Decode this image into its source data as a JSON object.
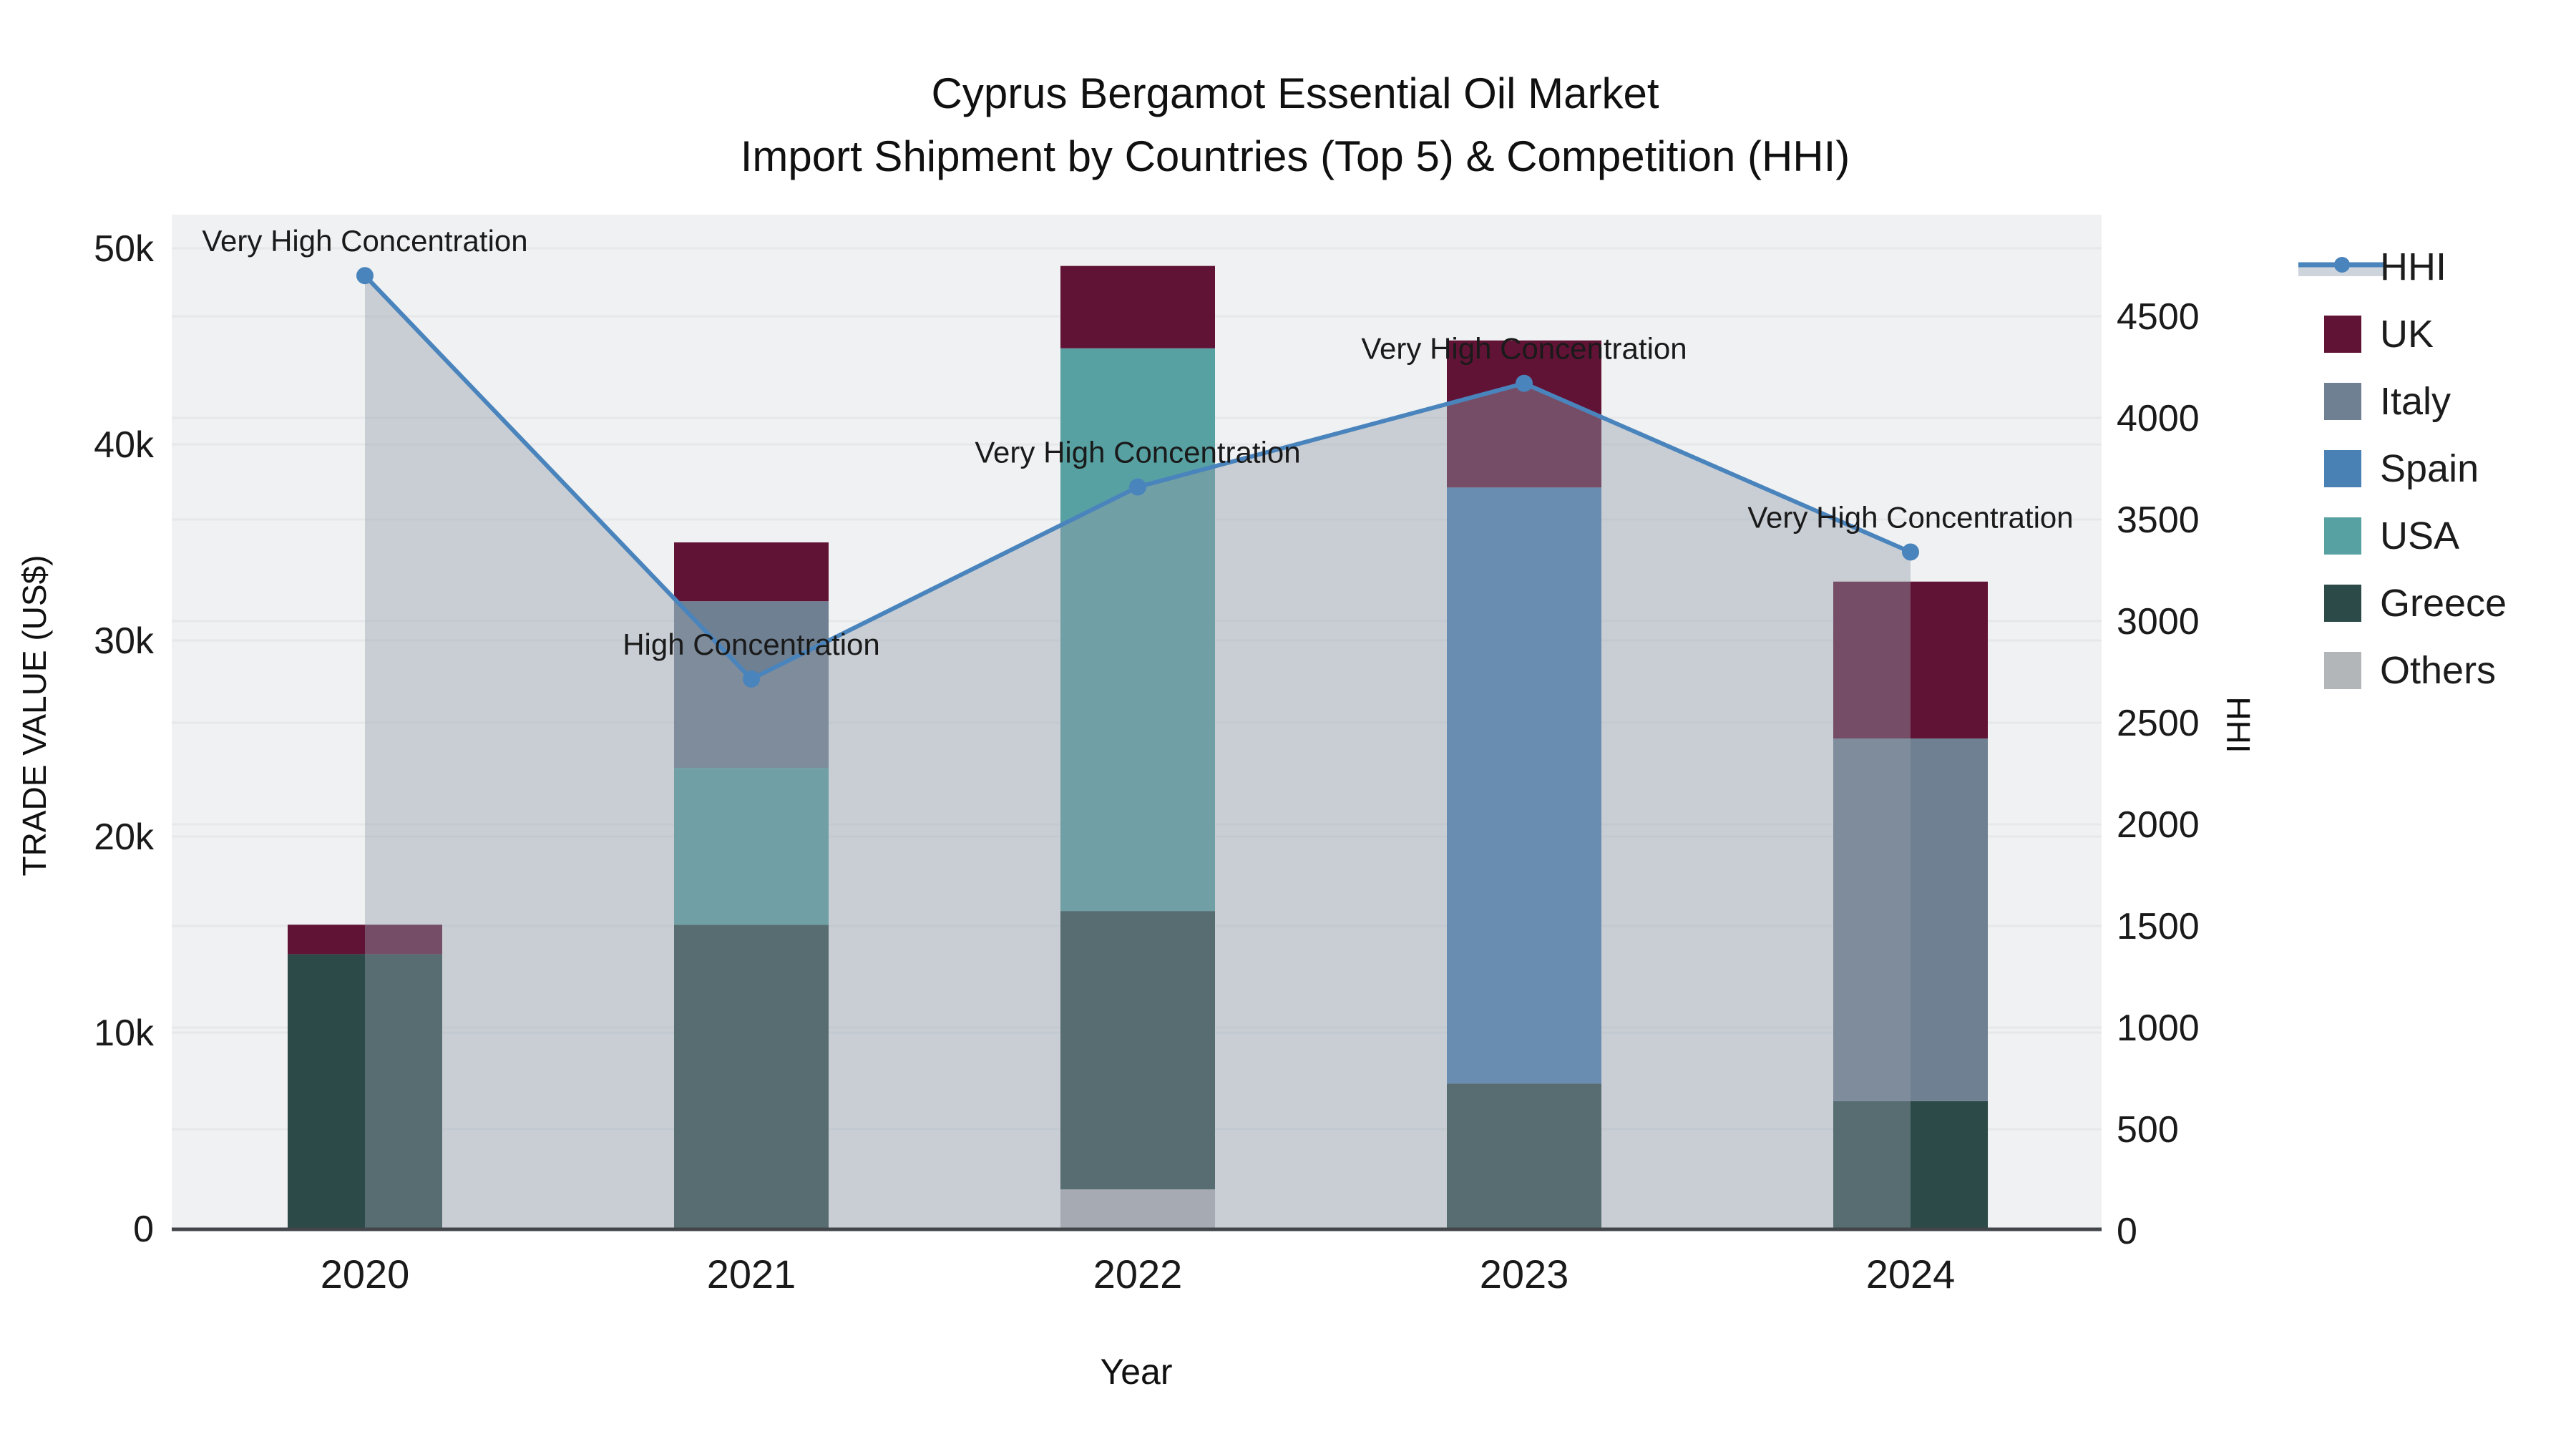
{
  "title": {
    "line1": "Cyprus Bergamot Essential Oil Market",
    "line2": "Import Shipment by Countries (Top 5) & Competition (HHI)"
  },
  "axes": {
    "x": {
      "title": "Year",
      "categories": [
        "2020",
        "2021",
        "2022",
        "2023",
        "2024"
      ]
    },
    "y_left": {
      "title": "TRADE VALUE (US$)",
      "tick_labels": [
        "0",
        "10k",
        "20k",
        "30k",
        "40k",
        "50k"
      ],
      "tick_values": [
        0,
        10000,
        20000,
        30000,
        40000,
        50000
      ],
      "range": [
        0,
        50000
      ]
    },
    "y_right": {
      "title": "HHI",
      "tick_labels": [
        "0",
        "500",
        "1000",
        "1500",
        "2000",
        "2500",
        "3000",
        "3500",
        "4000",
        "4500"
      ],
      "tick_values": [
        0,
        500,
        1000,
        1500,
        2000,
        2500,
        3000,
        3500,
        4000,
        4500
      ],
      "range": [
        0,
        4500
      ]
    }
  },
  "legend": [
    {
      "label": "HHI",
      "type": "line",
      "color": "#4a84bd"
    },
    {
      "label": "UK",
      "type": "swatch",
      "color": "#611336"
    },
    {
      "label": "Italy",
      "type": "swatch",
      "color": "#6f8092"
    },
    {
      "label": "Spain",
      "type": "swatch",
      "color": "#4a81b5"
    },
    {
      "label": "USA",
      "type": "swatch",
      "color": "#58a1a3"
    },
    {
      "label": "Greece",
      "type": "swatch",
      "color": "#2c4a47"
    },
    {
      "label": "Others",
      "type": "swatch",
      "color": "#b3b6b8"
    }
  ],
  "colors": {
    "plot_bg": "#f0f1f2",
    "gridline": "#e6e8ea",
    "axis_line": "#42464b",
    "area_fill": "rgba(147,158,172,0.42)",
    "hhi_line": "#4a84bd",
    "annotation_text": "#111111"
  },
  "chart_data": {
    "type": "bar+line",
    "categories": [
      "2020",
      "2021",
      "2022",
      "2023",
      "2024"
    ],
    "bar_value_unit": "US$ (trade value)",
    "stack_order_bottom_to_top": [
      "Others",
      "Greece",
      "USA",
      "Spain",
      "Italy",
      "UK"
    ],
    "series": [
      {
        "name": "Others",
        "type": "bar",
        "color": "#b3b6b8",
        "values": [
          0,
          0,
          2000,
          0,
          0
        ]
      },
      {
        "name": "Greece",
        "type": "bar",
        "color": "#2c4a47",
        "values": [
          14000,
          15500,
          14200,
          7400,
          6500
        ]
      },
      {
        "name": "USA",
        "type": "bar",
        "color": "#58a1a3",
        "values": [
          0,
          8000,
          28700,
          0,
          0
        ]
      },
      {
        "name": "Spain",
        "type": "bar",
        "color": "#4a81b5",
        "values": [
          0,
          0,
          0,
          30400,
          0
        ]
      },
      {
        "name": "Italy",
        "type": "bar",
        "color": "#6f8092",
        "values": [
          0,
          8500,
          0,
          0,
          18500
        ]
      },
      {
        "name": "UK",
        "type": "bar",
        "color": "#611336",
        "values": [
          1500,
          3000,
          4200,
          7500,
          8000
        ]
      }
    ],
    "bar_totals": [
      15500,
      35000,
      49100,
      45300,
      33000
    ],
    "line_series": {
      "name": "HHI",
      "type": "line",
      "axis": "right",
      "color": "#4a84bd",
      "area_fill": true,
      "values": [
        4700,
        2715,
        3660,
        4170,
        3340
      ]
    },
    "annotations": [
      {
        "x": "2020",
        "text": "Very High Concentration"
      },
      {
        "x": "2021",
        "text": "High Concentration"
      },
      {
        "x": "2022",
        "text": "Very High Concentration"
      },
      {
        "x": "2023",
        "text": "Very High Concentration"
      },
      {
        "x": "2024",
        "text": "Very High Concentration"
      }
    ],
    "title": "Cyprus Bergamot Essential Oil Market — Import Shipment by Countries (Top 5) & Competition (HHI)",
    "xlabel": "Year",
    "ylabel": "TRADE VALUE (US$)",
    "ylabel_right": "HHI",
    "ylim_left": [
      0,
      50000
    ],
    "ylim_right": [
      0,
      4500
    ],
    "grid": true,
    "legend_position": "right"
  }
}
